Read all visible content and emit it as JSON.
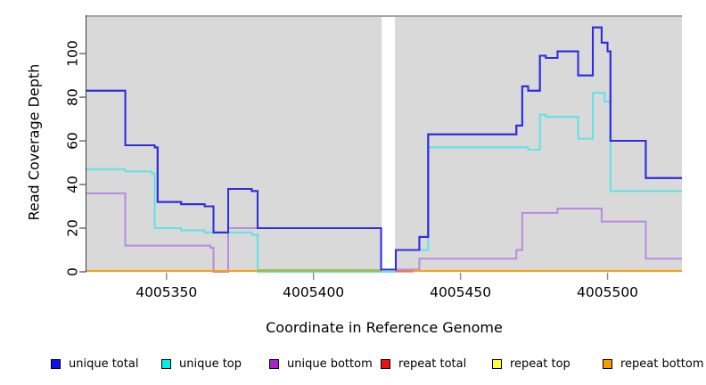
{
  "chart_data": {
    "type": "line",
    "subtype": "step",
    "title": "",
    "xlabel": "Coordinate in Reference Genome",
    "ylabel": "Read Coverage Depth",
    "xlim": [
      4005322.8,
      4005525.3
    ],
    "ylim": [
      0,
      117.6
    ],
    "x_ticks": [
      4005350,
      4005400,
      4005450,
      4005500
    ],
    "y_ticks": [
      0,
      20,
      40,
      60,
      80,
      100
    ],
    "grid": false,
    "panel_background": "#d9d9d9",
    "panel_top_border": "#a5a5a5",
    "no_data_gap": {
      "from": 4005423.2,
      "to": 4005427.7
    },
    "series": [
      {
        "name": "repeat total",
        "color": "#ee1111",
        "break_at_gap": true,
        "steps": [
          [
            4005322.8,
            0
          ]
        ]
      },
      {
        "name": "repeat top",
        "color": "#ffee22",
        "break_at_gap": true,
        "steps": [
          [
            4005322.8,
            0
          ]
        ]
      },
      {
        "name": "unique bottom",
        "color": "#b98ade",
        "steps": [
          [
            4005322.8,
            36
          ],
          [
            4005336,
            12
          ],
          [
            4005365,
            11
          ],
          [
            4005366,
            0
          ],
          [
            4005371,
            20
          ],
          [
            4005423,
            1
          ],
          [
            4005436,
            6
          ],
          [
            4005469,
            10
          ],
          [
            4005471,
            27
          ],
          [
            4005483,
            29
          ],
          [
            4005498,
            23
          ],
          [
            4005513,
            6
          ]
        ]
      },
      {
        "name": "unique top",
        "color": "#5fe2e6",
        "steps": [
          [
            4005322.8,
            47
          ],
          [
            4005336,
            46
          ],
          [
            4005345,
            45
          ],
          [
            4005346,
            20
          ],
          [
            4005355,
            19
          ],
          [
            4005363,
            18
          ],
          [
            4005379,
            17
          ],
          [
            4005381,
            0
          ],
          [
            4005428,
            10
          ],
          [
            4005439,
            57
          ],
          [
            4005473,
            56
          ],
          [
            4005477,
            72
          ],
          [
            4005479,
            71
          ],
          [
            4005490,
            61
          ],
          [
            4005495,
            82
          ],
          [
            4005499,
            78
          ],
          [
            4005501,
            37
          ]
        ]
      },
      {
        "name": "repeat bottom",
        "color": "#ff9d0a",
        "break_at_gap": true,
        "steps": [
          [
            4005322.8,
            0
          ]
        ]
      },
      {
        "name": "unique total",
        "color": "#2d2de0",
        "steps": [
          [
            4005322.8,
            83
          ],
          [
            4005336,
            58
          ],
          [
            4005346,
            57
          ],
          [
            4005347,
            32
          ],
          [
            4005355,
            31
          ],
          [
            4005363,
            30
          ],
          [
            4005366,
            18
          ],
          [
            4005371,
            38
          ],
          [
            4005379,
            37
          ],
          [
            4005381,
            20
          ],
          [
            4005423,
            1
          ],
          [
            4005428,
            10
          ],
          [
            4005436,
            16
          ],
          [
            4005439,
            63
          ],
          [
            4005469,
            67
          ],
          [
            4005471,
            85
          ],
          [
            4005473,
            83
          ],
          [
            4005477,
            99
          ],
          [
            4005479,
            98
          ],
          [
            4005483,
            101
          ],
          [
            4005490,
            90
          ],
          [
            4005495,
            112
          ],
          [
            4005498,
            105
          ],
          [
            4005500,
            101
          ],
          [
            4005501,
            60
          ],
          [
            4005513,
            43
          ]
        ]
      }
    ],
    "zero_line_overlaps": [
      {
        "color": "#7ac87a",
        "from": 4005381,
        "to": 4005423,
        "value": 0.75
      },
      {
        "color": "#e56a85",
        "from": 4005428,
        "to": 4005434,
        "value": 0.15
      }
    ],
    "legend_position": "bottom"
  },
  "legend": {
    "items": [
      {
        "label": "unique total",
        "color": "#1111ee"
      },
      {
        "label": "unique top",
        "color": "#00eeee"
      },
      {
        "label": "unique bottom",
        "color": "#aa22cc"
      },
      {
        "label": "repeat total",
        "color": "#ee1111"
      },
      {
        "label": "repeat top",
        "color": "#ffff33"
      },
      {
        "label": "repeat bottom",
        "color": "#ff9900"
      }
    ]
  }
}
